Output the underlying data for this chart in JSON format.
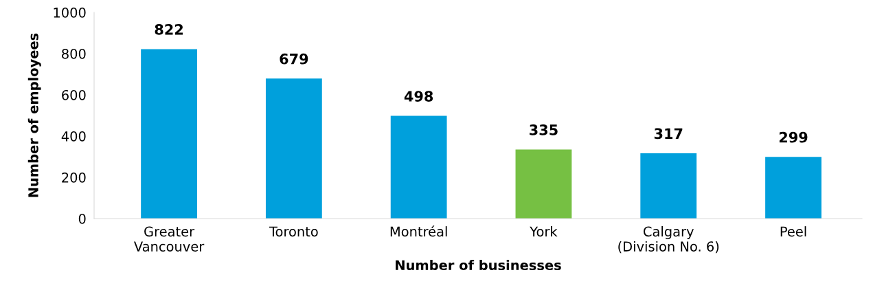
{
  "chart_data": {
    "type": "bar",
    "xlabel": "Number of businesses",
    "ylabel": "Number of employees",
    "categories": [
      "Greater\nVancouver",
      "Toronto",
      "Montréal",
      "York",
      "Calgary\n(Division No. 6)",
      "Peel"
    ],
    "values": [
      822,
      679,
      498,
      335,
      317,
      299
    ],
    "colors": [
      "#00a0dc",
      "#00a0dc",
      "#00a0dc",
      "#76c043",
      "#00a0dc",
      "#00a0dc"
    ],
    "ylim": [
      0,
      1000
    ],
    "yticks": [
      0,
      200,
      400,
      600,
      800,
      1000
    ],
    "grid": false,
    "data_labels": true
  }
}
